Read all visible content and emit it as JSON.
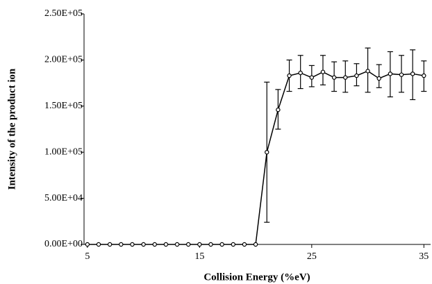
{
  "chart_data": {
    "type": "line",
    "x_label": "Collision Energy (%eV)",
    "y_label": "Intensity of the product  ion",
    "x": [
      5,
      6,
      7,
      8,
      9,
      10,
      11,
      12,
      13,
      14,
      15,
      16,
      17,
      18,
      19,
      20,
      21,
      22,
      23,
      24,
      25,
      26,
      27,
      28,
      29,
      30,
      31,
      32,
      33,
      34,
      35
    ],
    "series": [
      {
        "color": "#000000",
        "values": [
          0,
          0,
          0,
          0,
          0,
          0,
          0,
          0,
          0,
          0,
          0,
          0,
          0,
          0,
          0,
          0,
          100000,
          146000,
          183000,
          186000,
          181000,
          187000,
          181000,
          181000,
          183000,
          188000,
          180000,
          185000,
          184000,
          185000,
          183000
        ],
        "lower": [
          null,
          null,
          null,
          null,
          null,
          null,
          null,
          null,
          null,
          null,
          null,
          null,
          null,
          null,
          null,
          null,
          24000,
          125000,
          166000,
          169000,
          171000,
          173000,
          166000,
          165000,
          172000,
          165000,
          170000,
          160000,
          165000,
          157000,
          166000
        ],
        "upper": [
          null,
          null,
          null,
          null,
          null,
          null,
          null,
          null,
          null,
          null,
          null,
          null,
          null,
          null,
          null,
          null,
          176000,
          168000,
          200000,
          205000,
          194000,
          205000,
          198000,
          199000,
          196000,
          213000,
          195000,
          209000,
          205000,
          211000,
          199000
        ]
      }
    ],
    "xlim": [
      4.7,
      35.6
    ],
    "xticks": [
      5,
      15,
      25,
      35
    ],
    "ylim": [
      0,
      250000
    ],
    "yticks": [
      {
        "value": 0,
        "label": "0.00E+00"
      },
      {
        "value": 50000,
        "label": "5.00E+04"
      },
      {
        "value": 100000,
        "label": "1.00E+05"
      },
      {
        "value": 150000,
        "label": "1.50E+05"
      },
      {
        "value": 200000,
        "label": "2.00E+05"
      },
      {
        "value": 250000,
        "label": "2.50E+05"
      }
    ]
  }
}
